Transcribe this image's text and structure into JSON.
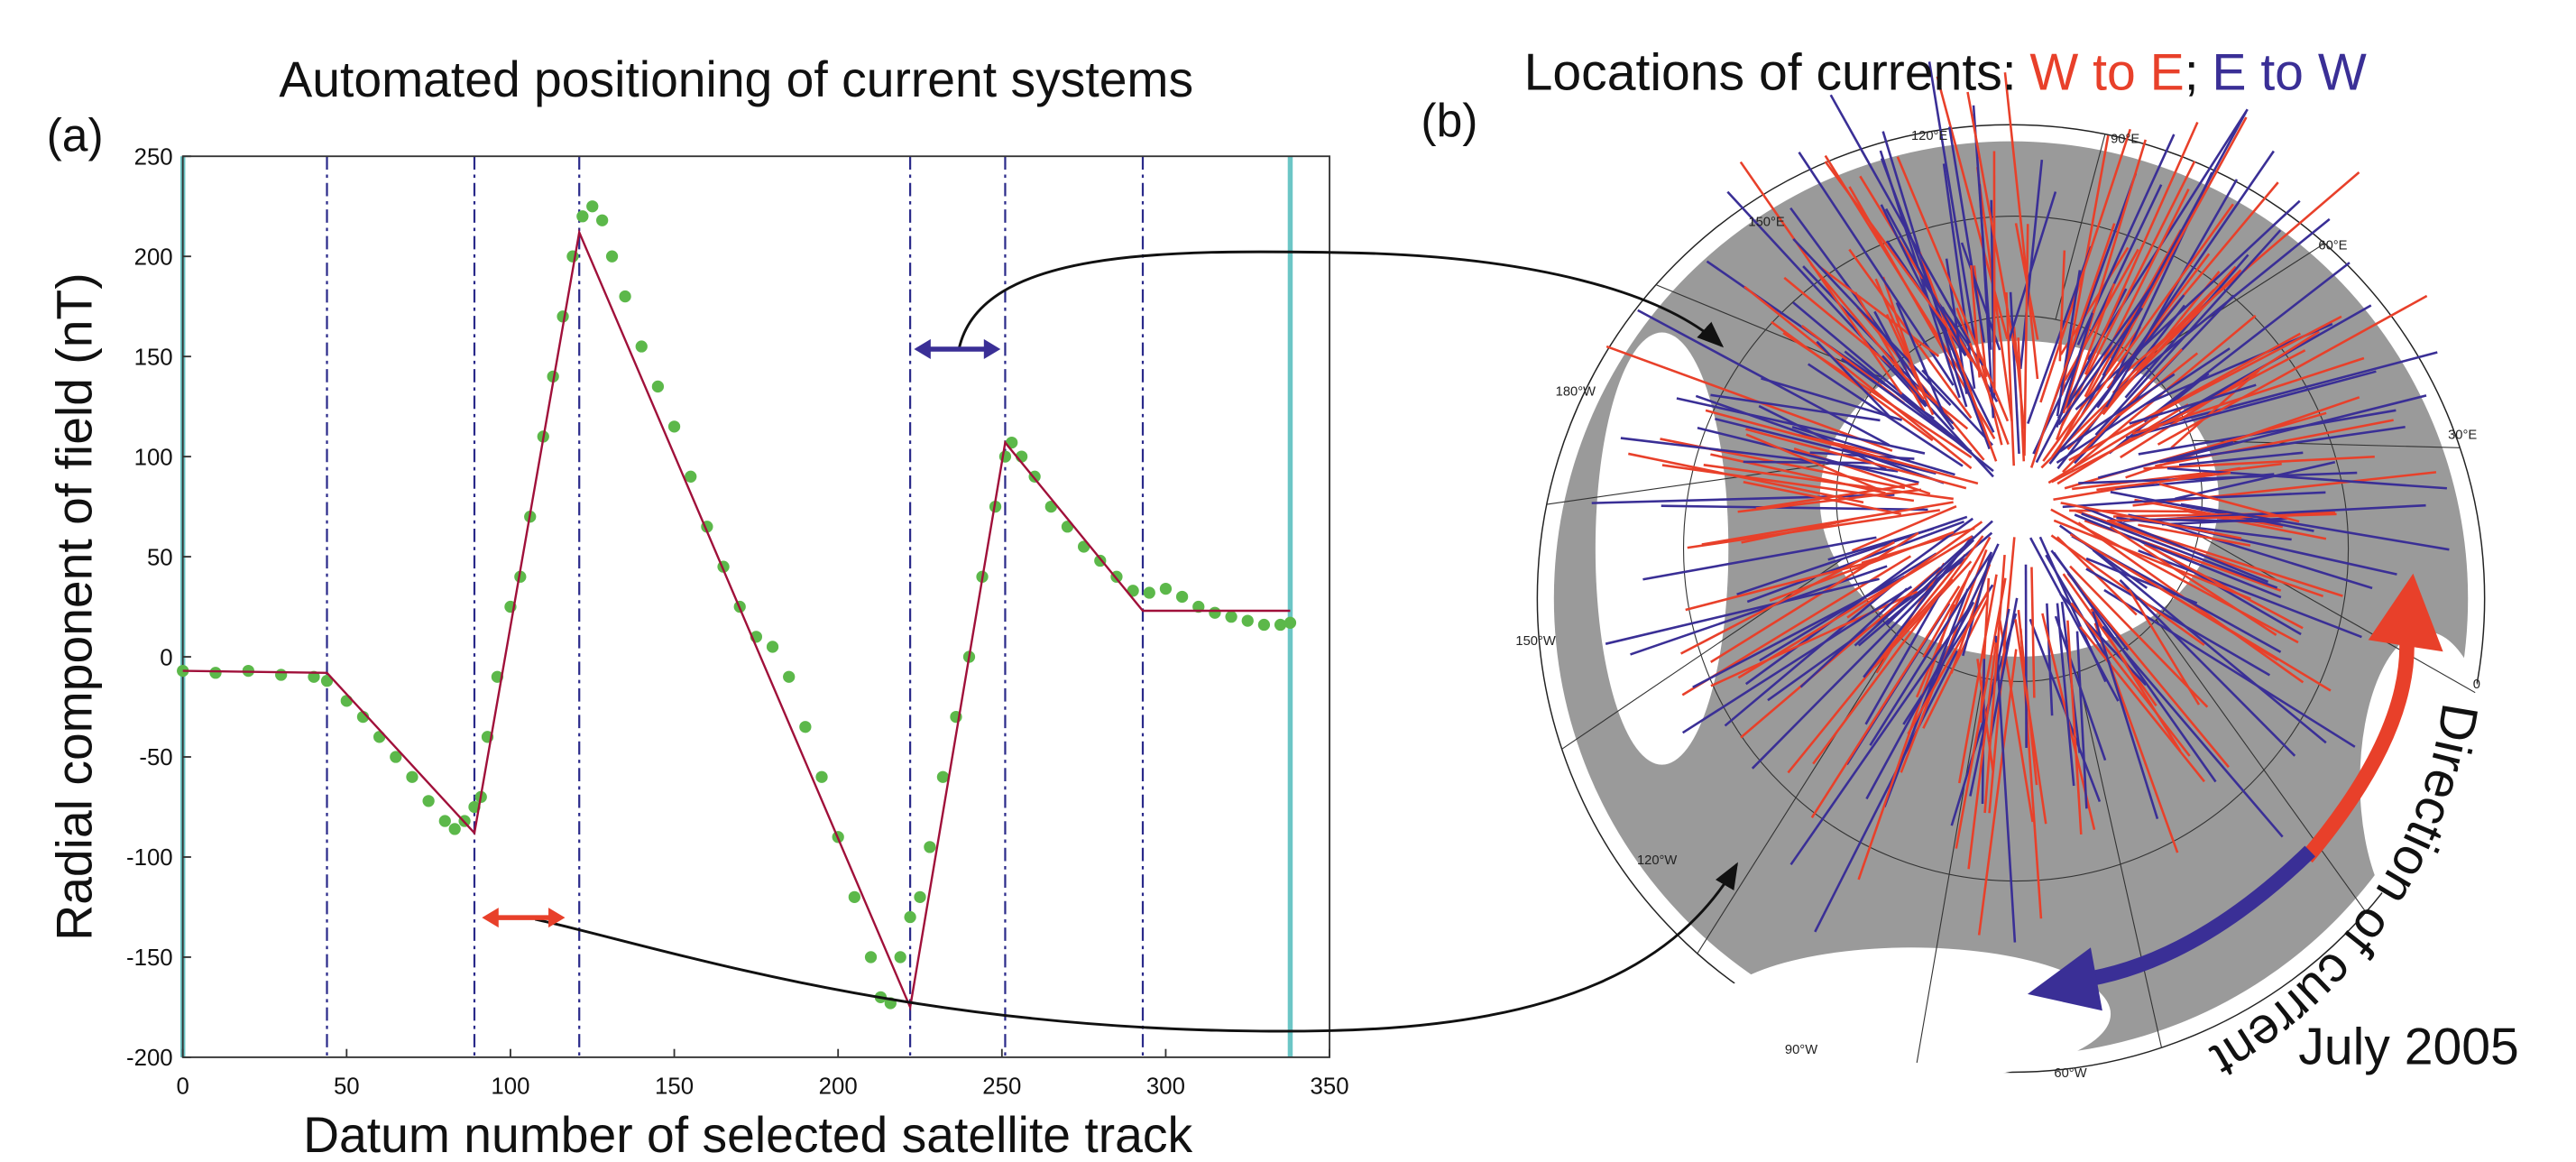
{
  "chart_data": {
    "type": "scatter",
    "panel_label": "(a)",
    "title": "Automated positioning of current systems",
    "x_label": "Datum number of selected satellite track",
    "y_label": "Radial component of field (nT)",
    "xlim": [
      0,
      350
    ],
    "ylim": [
      -200,
      250
    ],
    "xticks": [
      0,
      50,
      100,
      150,
      200,
      250,
      300,
      350
    ],
    "yticks": [
      -200,
      -150,
      -100,
      -50,
      0,
      50,
      100,
      150,
      200,
      250
    ],
    "boundaries": [
      44,
      89,
      121,
      222,
      251,
      293
    ],
    "track_ends": [
      0,
      338
    ],
    "series": [
      {
        "color": "#5cb84a",
        "x": [
          0,
          10,
          20,
          30,
          40,
          44,
          50,
          55,
          60,
          65,
          70,
          75,
          80,
          83,
          86,
          89,
          91,
          93,
          96,
          100,
          103,
          106,
          110,
          113,
          116,
          119,
          122,
          125,
          128,
          131,
          135,
          140,
          145,
          150,
          155,
          160,
          165,
          170,
          175,
          180,
          185,
          190,
          195,
          200,
          205,
          210,
          213,
          216,
          219,
          222,
          225,
          228,
          232,
          236,
          240,
          244,
          248,
          251,
          253,
          256,
          260,
          265,
          270,
          275,
          280,
          285,
          290,
          295,
          300,
          305,
          310,
          315,
          320,
          325,
          330,
          335,
          338
        ],
        "values": [
          -7,
          -8,
          -7,
          -9,
          -10,
          -12,
          -22,
          -30,
          -40,
          -50,
          -60,
          -72,
          -82,
          -86,
          -82,
          -75,
          -70,
          -40,
          -10,
          25,
          40,
          70,
          110,
          140,
          170,
          200,
          220,
          225,
          218,
          200,
          180,
          155,
          135,
          115,
          90,
          65,
          45,
          25,
          10,
          5,
          -10,
          -35,
          -60,
          -90,
          -120,
          -150,
          -170,
          -173,
          -150,
          -130,
          -120,
          -95,
          -60,
          -30,
          0,
          40,
          75,
          100,
          107,
          100,
          90,
          75,
          65,
          55,
          48,
          40,
          33,
          32,
          34,
          30,
          25,
          22,
          20,
          18,
          16,
          16,
          17
        ]
      },
      {
        "color": "#a0103a",
        "x": [
          0,
          44,
          89,
          121,
          222,
          251,
          293,
          338
        ],
        "values": [
          -7,
          -8,
          -88,
          212,
          -175,
          107,
          23,
          23
        ]
      }
    ]
  },
  "map": {
    "panel_label": "(b)",
    "title": "Locations of currents:",
    "w_to_e": "W to E",
    "separator": ";",
    "e_to_w": "E to W",
    "w_to_e_color": "#e8402a",
    "e_to_w_color": "#3a2f96",
    "direction": "Direction of current",
    "date": "July 2005",
    "lon_labels": [
      "120°E",
      "90°E",
      "60°E",
      "30°E",
      "0",
      "150°E",
      "180°W",
      "150°W",
      "120°W",
      "90°W",
      "60°W"
    ]
  }
}
